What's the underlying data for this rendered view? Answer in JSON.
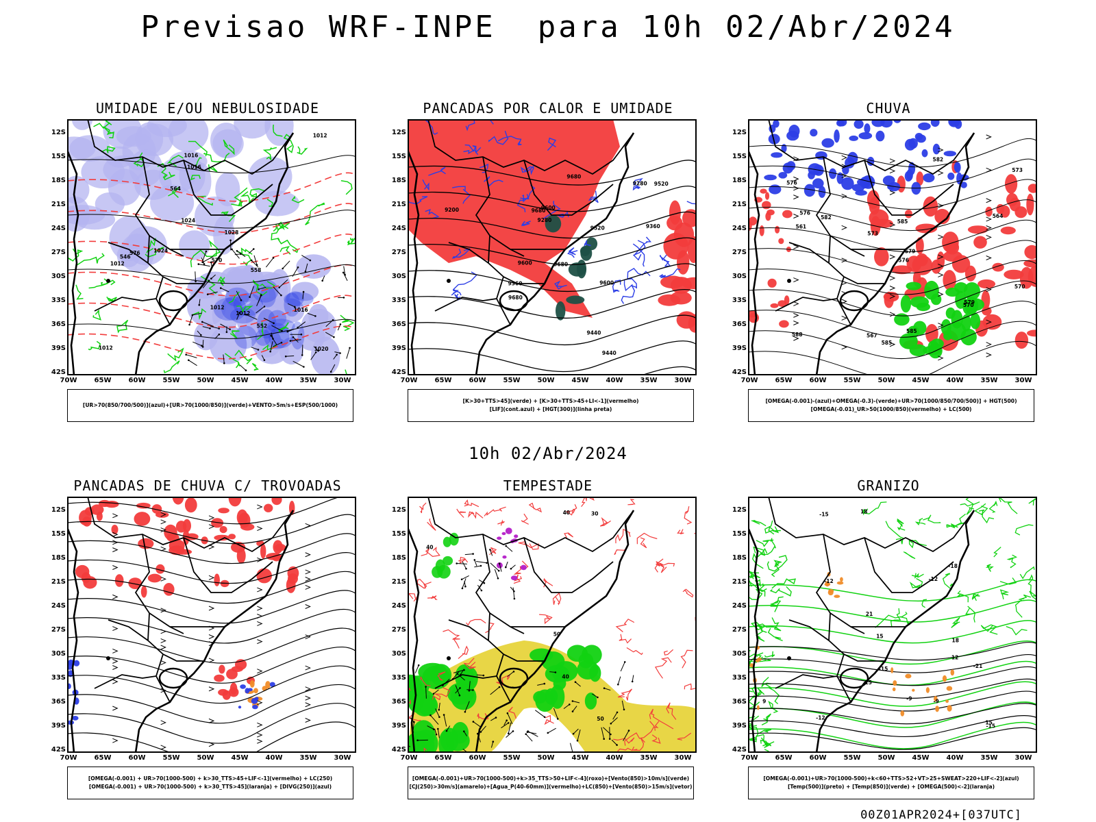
{
  "title": "Previsao WRF-INPE  para 10h 02/Abr/2024",
  "mid_title": "10h 02/Abr/2024",
  "footer": "00Z01APR2024+[037UTC]",
  "lat_labels": [
    "12S",
    "15S",
    "18S",
    "21S",
    "24S",
    "27S",
    "30S",
    "33S",
    "36S",
    "39S",
    "42S"
  ],
  "lon_labels": [
    "70W",
    "65W",
    "60W",
    "55W",
    "50W",
    "45W",
    "40W",
    "35W",
    "30W"
  ],
  "colors": {
    "blue": "#2c3ee6",
    "lavender": "#b4b4f0",
    "green": "#12d212",
    "red": "#f23c3c",
    "dark_teal": "#1e5046",
    "yellow": "#e6d232",
    "magenta": "#b41ec8",
    "orange": "#f08c28",
    "black": "#000000"
  },
  "panels": [
    {
      "title": "UMIDADE E/OU NEBULOSIDADE",
      "legend": [
        "[UR>70(850/700/500)](azul)+[UR>70(1000/850)](verde)+VENTO>5m/s+ESP(500/1000)"
      ],
      "contour_labels": [
        "1012",
        "1012",
        "1012",
        "1012",
        "1012",
        "1016",
        "1016",
        "1016",
        "1020",
        "1024",
        "1024",
        "1028",
        "576",
        "570",
        "564",
        "558",
        "552",
        "546"
      ]
    },
    {
      "title": "PANCADAS POR CALOR E UMIDADE",
      "legend": [
        "[K>30+TTS>45](verde) + [K>30+TTS>45+LI<-1](vermelho)",
        "[LIF](cont.azul) + [HGT(300)](linha preta)"
      ],
      "contour_labels": [
        "9680",
        "9680",
        "9680",
        "9680",
        "9600",
        "9600",
        "9600",
        "9520",
        "9520",
        "9440",
        "9440",
        "9360",
        "9280",
        "9200",
        "9280",
        "9360"
      ]
    },
    {
      "title": "CHUVA",
      "legend": [
        "[OMEGA(-0.001)-(azul)+OMEGA(-0.3)-(verde)+UR>70(1000/850/700/500)] + HGT(500)",
        "[OMEGA(-0.01)_UR>50(1000/850)(vermelho) + LC(500)"
      ],
      "contour_labels": [
        "585",
        "585",
        "582",
        "579",
        "576",
        "576",
        "573",
        "570",
        "567",
        "564",
        "561",
        "588",
        "585",
        "582",
        "579",
        "576",
        "573",
        "570"
      ]
    },
    {
      "title": "PANCADAS DE CHUVA C/ TROVOADAS",
      "legend": [
        "[OMEGA(-0.001) + UR>70(1000-500) + k>30_TTS>45+LIF<-1](vermelho) + LC(250)",
        "[OMEGA(-0.001) + UR>70(1000-500) + k>30_TTS>45](laranja) + [DIVG(250)](azul)"
      ],
      "contour_labels": []
    },
    {
      "title": "TEMPESTADE",
      "legend": [
        "[OMEGA(-0.001)+UR>70(1000-500)+k>35_TTS>50+LIF<-4](roxo)+[Vento(850)>10m/s](verde)",
        "[CJ(250)>30m/s](amarelo)+[Agua_P(40-60mm)](vermelho)+LC(850)+[Vento(850)>15m/s](vetor)"
      ],
      "contour_labels": [
        "40",
        "40",
        "40",
        "50",
        "50",
        "30"
      ]
    },
    {
      "title": "GRANIZO",
      "legend": [
        "[OMEGA(-0.001)+UR>70(1000-500)+k<60+TTS>52+VT>25+SWEAT>220+LIF<-2](azul)",
        "[Temp(500)](preto) + [Temp(850)](verde) + [OMEGA(500)<-2](laranja)"
      ],
      "contour_labels": [
        "-9",
        "-12",
        "-12",
        "-15",
        "-15",
        "-18",
        "-21",
        "-15",
        "-12",
        "-9",
        "15",
        "15",
        "18",
        "21",
        "15",
        "12",
        "9",
        "18"
      ]
    }
  ]
}
